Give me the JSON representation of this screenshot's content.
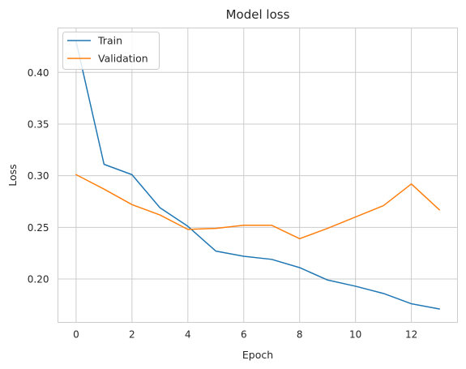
{
  "chart_data": {
    "type": "line",
    "title": "Model loss",
    "xlabel": "Epoch",
    "ylabel": "Loss",
    "x": [
      0,
      1,
      2,
      3,
      4,
      5,
      6,
      7,
      8,
      9,
      10,
      11,
      12,
      13
    ],
    "series": [
      {
        "name": "Train",
        "color": "#1f77b4",
        "values": [
          0.43,
          0.311,
          0.301,
          0.269,
          0.251,
          0.227,
          0.222,
          0.219,
          0.211,
          0.199,
          0.193,
          0.186,
          0.176,
          0.171
        ]
      },
      {
        "name": "Validation",
        "color": "#ff7f0e",
        "values": [
          0.301,
          0.287,
          0.272,
          0.262,
          0.248,
          0.249,
          0.252,
          0.252,
          0.239,
          0.249,
          0.26,
          0.271,
          0.292,
          0.267
        ]
      }
    ],
    "xticks": [
      0,
      2,
      4,
      6,
      8,
      10,
      12
    ],
    "xtick_labels": [
      "0",
      "2",
      "4",
      "6",
      "8",
      "10",
      "12"
    ],
    "yticks": [
      0.2,
      0.25,
      0.3,
      0.35,
      0.4
    ],
    "ytick_labels": [
      "0.20",
      "0.25",
      "0.30",
      "0.35",
      "0.40"
    ],
    "xlim": [
      -0.65,
      13.65
    ],
    "ylim": [
      0.158,
      0.443
    ],
    "grid": true,
    "legend_position": "top-left"
  }
}
